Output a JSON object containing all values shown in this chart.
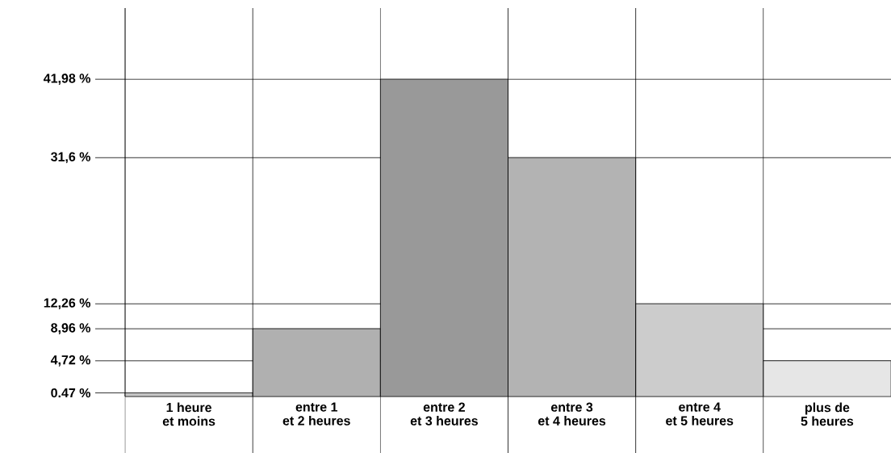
{
  "chart_data": {
    "type": "bar",
    "categories": [
      "1 heure\net moins",
      "entre 1\net 2 heures",
      "entre 2\net 3 heures",
      "entre 3\net 4 heures",
      "entre 4\net 5 heures",
      "plus de\n5 heures"
    ],
    "values": [
      0.47,
      8.96,
      41.98,
      31.6,
      12.26,
      4.72
    ],
    "colors": [
      "#c6c6c6",
      "#b0b0b0",
      "#999999",
      "#b3b3b3",
      "#cccccc",
      "#e6e6e6"
    ],
    "ylim": [
      0,
      51.4
    ],
    "yticks": [
      {
        "value": 0.47,
        "label": "0.47 %"
      },
      {
        "value": 4.72,
        "label": "4,72 %"
      },
      {
        "value": 8.96,
        "label": "8,96 %"
      },
      {
        "value": 12.26,
        "label": "12,26 %"
      },
      {
        "value": 31.6,
        "label": "31,6 %"
      },
      {
        "value": 41.98,
        "label": "41,98 %"
      }
    ],
    "grid": true
  }
}
